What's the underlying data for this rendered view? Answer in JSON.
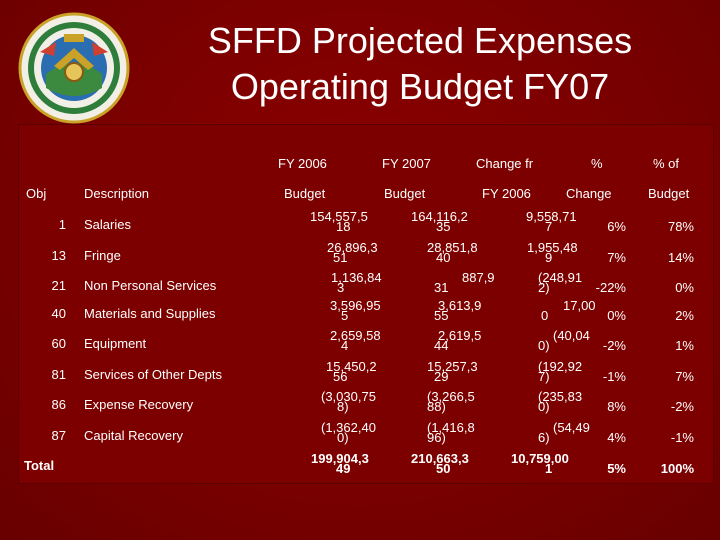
{
  "title": {
    "line1": "SFFD Projected Expenses",
    "line2": "Operating Budget FY07"
  },
  "seal": {
    "icon": "sffd-seal-logo"
  },
  "headers": {
    "fy2006_top": "FY 2006",
    "fy2007_top": "FY 2007",
    "change_top": "Change fr",
    "pct_top": "%",
    "pctof_top": "% of",
    "obj": "Obj",
    "description": "Description",
    "fy2006_bottom": "Budget",
    "fy2007_bottom": "Budget",
    "change_bottom": "FY 2006",
    "pct_bottom": "Change",
    "pctof_bottom": "Budget"
  },
  "rows": [
    {
      "obj": "1",
      "desc": "Salaries",
      "fy06_a": "154,557,5",
      "fy06_b": "18",
      "fy07_a": "164,116,2",
      "fy07_b": "35",
      "chg_a": "9,558,71",
      "chg_b": "7",
      "pct": "6%",
      "share": "78%"
    },
    {
      "obj": "13",
      "desc": "Fringe",
      "fy06_a": "26,896,3",
      "fy06_b": "51",
      "fy07_a": "28,851,8",
      "fy07_b": "40",
      "chg_a": "1,955,48",
      "chg_b": "9",
      "pct": "7%",
      "share": "14%"
    },
    {
      "obj": "21",
      "desc": "Non Personal Services",
      "fy06_a": "1,136,84",
      "fy06_b": "3",
      "fy07_a": "887,9",
      "fy07_b": "31",
      "chg_a": "(248,91",
      "chg_b": "2)",
      "pct": "-22%",
      "share": "0%"
    },
    {
      "obj": "40",
      "desc": "Materials and Supplies",
      "fy06_a": "3,596,95",
      "fy06_b": "5",
      "fy07_a": "3,613,9",
      "fy07_b": "55",
      "chg_a": "17,00",
      "chg_b": "0",
      "pct": "0%",
      "share": "2%"
    },
    {
      "obj": "60",
      "desc": "Equipment",
      "fy06_a": "2,659,58",
      "fy06_b": "4",
      "fy07_a": "2,619,5",
      "fy07_b": "44",
      "chg_a": "(40,04",
      "chg_b": "0)",
      "pct": "-2%",
      "share": "1%"
    },
    {
      "obj": "81",
      "desc": "Services of Other Depts",
      "fy06_a": "15,450,2",
      "fy06_b": "56",
      "fy07_a": "15,257,3",
      "fy07_b": "29",
      "chg_a": "(192,92",
      "chg_b": "7)",
      "pct": "-1%",
      "share": "7%"
    },
    {
      "obj": "86",
      "desc": "Expense Recovery",
      "fy06_a": "(3,030,75",
      "fy06_b": "8)",
      "fy07_a": "(3,266,5",
      "fy07_b": "88)",
      "chg_a": "(235,83",
      "chg_b": "0)",
      "pct": "8%",
      "share": "-2%"
    },
    {
      "obj": "87",
      "desc": "Capital Recovery",
      "fy06_a": "(1,362,40",
      "fy06_b": "0)",
      "fy07_a": "(1,416,8",
      "fy07_b": "96)",
      "chg_a": "(54,49",
      "chg_b": "6)",
      "pct": "4%",
      "share": "-1%"
    }
  ],
  "total": {
    "label": "Total",
    "fy06_a": "199,904,3",
    "fy06_b": "49",
    "fy07_a": "210,663,3",
    "fy07_b": "50",
    "chg_a": "10,759,00",
    "chg_b": "1",
    "pct": "5%",
    "share": "100%"
  },
  "colors": {
    "background": "#7a0000",
    "text": "#ffffff",
    "seal_gold": "#c9a227",
    "seal_green": "#2e7d3a"
  }
}
